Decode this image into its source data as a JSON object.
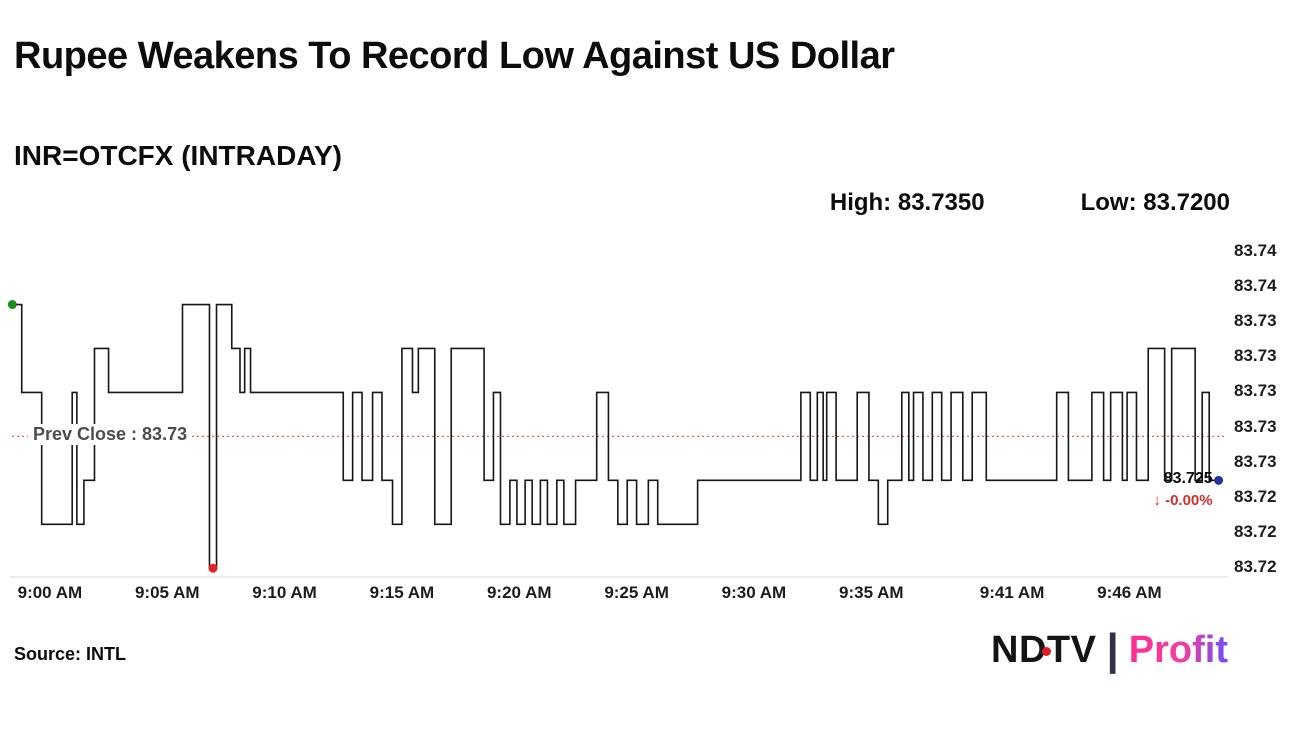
{
  "footer": {
    "source": "Source: INTL",
    "logo": {
      "ndtv": "NDTV",
      "separator": "|",
      "profit": "Profit"
    }
  },
  "chart_data": {
    "type": "line",
    "title": "Rupee Weakens To Record Low Against US Dollar",
    "subtitle": "INR=OTCFX (INTRADAY)",
    "high_label": "High: 83.7350",
    "low_label": "Low: 83.7200",
    "high": 83.735,
    "low": 83.72,
    "prev_close": 83.7275,
    "prev_close_label": "Prev Close : 83.73",
    "last": 83.725,
    "last_label": "83.725",
    "change_label": "↓ -0.00%",
    "x_unit": "minutes after 9:00 AM",
    "x_range": [
      -1.7,
      50.2
    ],
    "y_range": [
      83.7195,
      83.7385
    ],
    "grid": false,
    "legend": "none",
    "x_ticks": [
      {
        "t": 0,
        "label": "9:00 AM"
      },
      {
        "t": 5,
        "label": "9:05 AM"
      },
      {
        "t": 10,
        "label": "9:10 AM"
      },
      {
        "t": 15,
        "label": "9:15 AM"
      },
      {
        "t": 20,
        "label": "9:20 AM"
      },
      {
        "t": 25,
        "label": "9:25 AM"
      },
      {
        "t": 30,
        "label": "9:30 AM"
      },
      {
        "t": 35,
        "label": "9:35 AM"
      },
      {
        "t": 41,
        "label": "9:41 AM"
      },
      {
        "t": 46,
        "label": "9:46 AM"
      }
    ],
    "y_ticks": [
      {
        "v": 83.738,
        "label": "83.74"
      },
      {
        "v": 83.736,
        "label": "83.74"
      },
      {
        "v": 83.734,
        "label": "83.73"
      },
      {
        "v": 83.732,
        "label": "83.73"
      },
      {
        "v": 83.73,
        "label": "83.73"
      },
      {
        "v": 83.728,
        "label": "83.73"
      },
      {
        "v": 83.726,
        "label": "83.73"
      },
      {
        "v": 83.724,
        "label": "83.72"
      },
      {
        "v": 83.722,
        "label": "83.72"
      },
      {
        "v": 83.72,
        "label": "83.72"
      }
    ],
    "colors": {
      "line": "#161616",
      "prev_close_line": "#e06666",
      "negative": "#d32f2f"
    },
    "series": [
      {
        "name": "INR=OTCFX",
        "color": "#161616",
        "step": true,
        "points": [
          [
            -1.6,
            83.735
          ],
          [
            -1.2,
            83.73
          ],
          [
            -0.35,
            83.7225
          ],
          [
            0.95,
            83.73
          ],
          [
            1.15,
            83.7225
          ],
          [
            1.45,
            83.725
          ],
          [
            1.9,
            83.7325
          ],
          [
            2.5,
            83.73
          ],
          [
            5.65,
            83.735
          ],
          [
            6.8,
            83.72
          ],
          [
            7.1,
            83.735
          ],
          [
            7.75,
            83.7325
          ],
          [
            8.1,
            83.73
          ],
          [
            8.3,
            83.7325
          ],
          [
            8.55,
            83.73
          ],
          [
            12.5,
            83.725
          ],
          [
            12.9,
            83.73
          ],
          [
            13.3,
            83.725
          ],
          [
            13.75,
            83.73
          ],
          [
            14.15,
            83.725
          ],
          [
            14.6,
            83.7225
          ],
          [
            15.0,
            83.7325
          ],
          [
            15.45,
            83.73
          ],
          [
            15.7,
            83.7325
          ],
          [
            16.4,
            83.7225
          ],
          [
            17.1,
            83.7325
          ],
          [
            18.5,
            83.725
          ],
          [
            18.9,
            83.73
          ],
          [
            19.2,
            83.7225
          ],
          [
            19.6,
            83.725
          ],
          [
            19.9,
            83.7225
          ],
          [
            20.25,
            83.725
          ],
          [
            20.55,
            83.7225
          ],
          [
            20.9,
            83.725
          ],
          [
            21.2,
            83.7225
          ],
          [
            21.6,
            83.725
          ],
          [
            21.9,
            83.7225
          ],
          [
            22.4,
            83.725
          ],
          [
            23.3,
            83.73
          ],
          [
            23.8,
            83.725
          ],
          [
            24.2,
            83.7225
          ],
          [
            24.6,
            83.725
          ],
          [
            25.0,
            83.7225
          ],
          [
            25.5,
            83.725
          ],
          [
            25.9,
            83.7225
          ],
          [
            27.6,
            83.725
          ],
          [
            32.0,
            83.73
          ],
          [
            32.4,
            83.725
          ],
          [
            32.7,
            83.73
          ],
          [
            32.95,
            83.725
          ],
          [
            33.1,
            83.73
          ],
          [
            33.5,
            83.725
          ],
          [
            34.4,
            83.73
          ],
          [
            34.9,
            83.725
          ],
          [
            35.3,
            83.7225
          ],
          [
            35.7,
            83.725
          ],
          [
            36.3,
            83.73
          ],
          [
            36.6,
            83.725
          ],
          [
            36.8,
            83.73
          ],
          [
            37.2,
            83.725
          ],
          [
            37.6,
            83.73
          ],
          [
            38.0,
            83.725
          ],
          [
            38.4,
            83.73
          ],
          [
            38.9,
            83.725
          ],
          [
            39.3,
            83.73
          ],
          [
            39.9,
            83.725
          ],
          [
            42.9,
            83.73
          ],
          [
            43.4,
            83.725
          ],
          [
            44.4,
            83.73
          ],
          [
            44.9,
            83.725
          ],
          [
            45.2,
            83.73
          ],
          [
            45.7,
            83.725
          ],
          [
            45.9,
            83.73
          ],
          [
            46.3,
            83.725
          ],
          [
            46.8,
            83.7325
          ],
          [
            47.5,
            83.725
          ],
          [
            47.8,
            83.7325
          ],
          [
            48.8,
            83.725
          ],
          [
            49.1,
            83.73
          ],
          [
            49.4,
            83.725
          ],
          [
            49.8,
            83.725
          ]
        ]
      }
    ],
    "markers": [
      {
        "name": "session-start",
        "t": -1.6,
        "v": 83.735,
        "color": "#1e8c1e"
      },
      {
        "name": "session-low",
        "t": 6.95,
        "v": 83.72,
        "color": "#e02424"
      },
      {
        "name": "last-price",
        "t": 49.8,
        "v": 83.725,
        "color": "#20369f"
      }
    ]
  }
}
